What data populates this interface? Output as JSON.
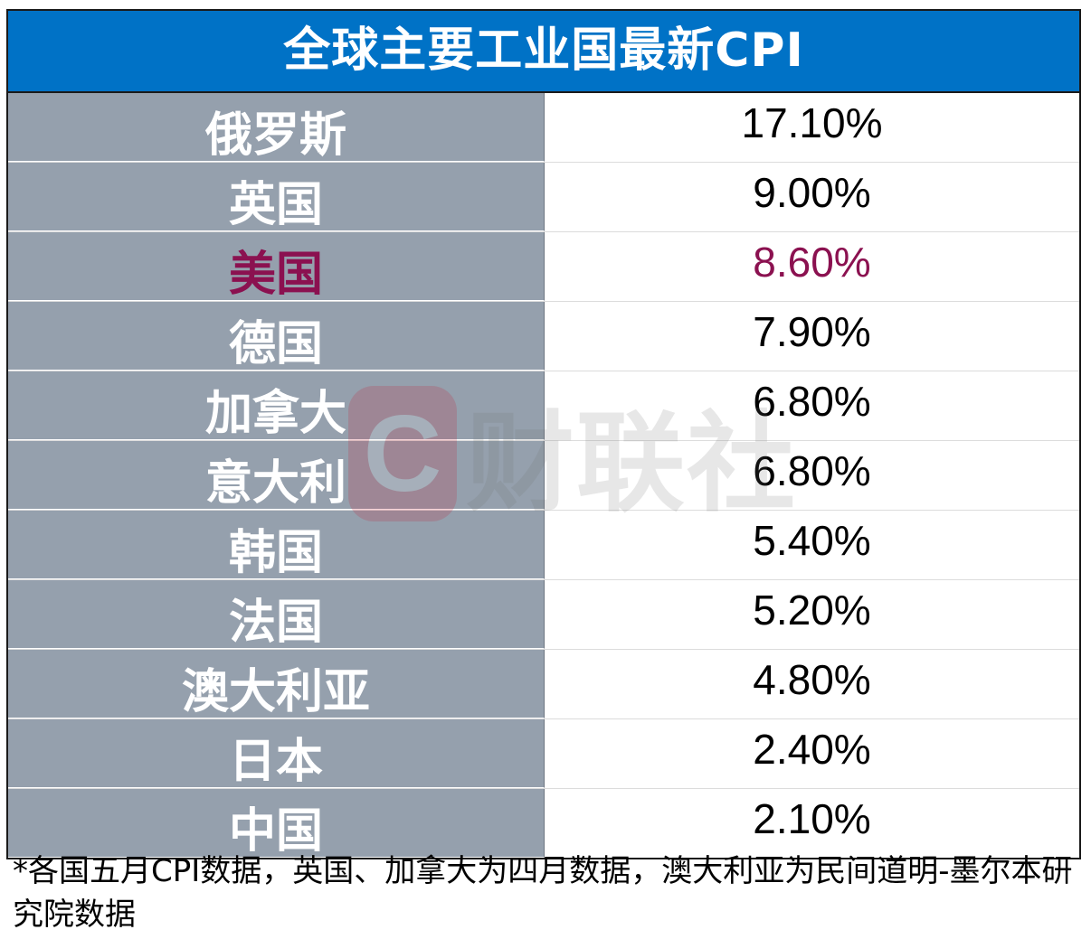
{
  "chart_data": {
    "type": "table",
    "title": "全球主要工业国最新CPI",
    "rows": [
      {
        "country": "俄罗斯",
        "value": "17.10%",
        "cpi": 17.1
      },
      {
        "country": "英国",
        "value": "9.00%",
        "cpi": 9.0
      },
      {
        "country": "美国",
        "value": "8.60%",
        "cpi": 8.6,
        "highlight": true
      },
      {
        "country": "德国",
        "value": "7.90%",
        "cpi": 7.9
      },
      {
        "country": "加拿大",
        "value": "6.80%",
        "cpi": 6.8
      },
      {
        "country": "意大利",
        "value": "6.80%",
        "cpi": 6.8
      },
      {
        "country": "韩国",
        "value": "5.40%",
        "cpi": 5.4
      },
      {
        "country": "法国",
        "value": "5.20%",
        "cpi": 5.2
      },
      {
        "country": "澳大利亚",
        "value": "4.80%",
        "cpi": 4.8
      },
      {
        "country": "日本",
        "value": "2.40%",
        "cpi": 2.4
      },
      {
        "country": "中国",
        "value": "2.10%",
        "cpi": 2.1
      }
    ],
    "footnote": "*各国五月CPI数据，英国、加拿大为四月数据，澳大利亚为民间道明-墨尔本研究院数据"
  },
  "colors": {
    "title_bg": "#0072c6",
    "country_bg": "#95a0ad",
    "highlight": "#8b1150"
  },
  "watermark": {
    "logo_letter": "C",
    "text": "财联社"
  }
}
